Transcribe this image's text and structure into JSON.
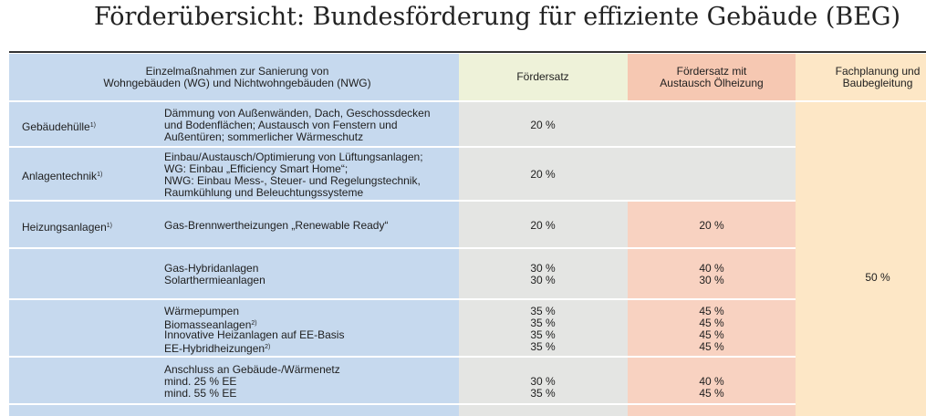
{
  "title": "Förderübersicht: Bundesförderung für effiziente Gebäude (BEG)",
  "table": {
    "header": [
      [
        "Einzelmaßnahmen zur Sanierung von",
        "Wohngebäuden (WG) und Nichtwohngebäuden (NWG)"
      ],
      [
        "Fördersatz"
      ],
      [
        "Fördersatz mit",
        "Austausch Ölheizung"
      ],
      [
        "Fachplanung und",
        "Baubegleitung"
      ]
    ],
    "planning_rate": "50 %",
    "rows": [
      {
        "category": "Gebäudehülle",
        "category_note": "1)",
        "description": [
          {
            "text": "Dämmung von Außenwänden, Dach, Geschossdecken"
          },
          {
            "text": "und Bodenflächen; Austausch von Fenstern und"
          },
          {
            "text": "Außentüren; sommerlicher Wärmeschutz"
          }
        ],
        "rate": [
          "20 %"
        ],
        "rate_oil": []
      },
      {
        "category": "Anlagentechnik",
        "category_note": "1)",
        "description": [
          {
            "text": "Einbau/Austausch/Optimierung von Lüftungsanlagen;"
          },
          {
            "text": "WG: Einbau „Efficiency Smart Home“;"
          },
          {
            "text": "NWG: Einbau Mess-, Steuer- und Regelungstechnik,"
          },
          {
            "text": "Raumkühlung und Beleuchtungssysteme"
          }
        ],
        "rate": [
          "20 %"
        ],
        "rate_oil": []
      },
      {
        "category": "Heizungsanlagen",
        "category_note": "1)",
        "description": [
          {
            "text": "Gas-Brennwertheizungen „Renewable Ready“"
          }
        ],
        "rate": [
          "20 %"
        ],
        "rate_oil": [
          "20 %"
        ]
      },
      {
        "description": [
          {
            "text": "Gas-Hybridanlagen"
          },
          {
            "text": "Solarthermieanlagen"
          }
        ],
        "rate": [
          "30 %",
          "30 %"
        ],
        "rate_oil": [
          "40 %",
          "30 %"
        ]
      },
      {
        "description": [
          {
            "text": "Wärmepumpen"
          },
          {
            "text": "Biomasseanlagen",
            "note": "2)"
          },
          {
            "text": "Innovative Heizanlagen auf EE-Basis"
          },
          {
            "text": "EE-Hybridheizungen",
            "note": "2)"
          }
        ],
        "rate": [
          "35 %",
          "35 %",
          "35 %",
          "35 %"
        ],
        "rate_oil": [
          "45 %",
          "45 %",
          "45 %",
          "45 %"
        ]
      },
      {
        "description": [
          {
            "text": "Anschluss an Gebäude-/Wärmenetz"
          },
          {
            "text": "mind. 25 % EE"
          },
          {
            "text": "mind. 55 % EE"
          }
        ],
        "rate": [
          "30 %",
          "35 %"
        ],
        "rate_oil": [
          "40 %",
          "45 %"
        ]
      }
    ]
  }
}
